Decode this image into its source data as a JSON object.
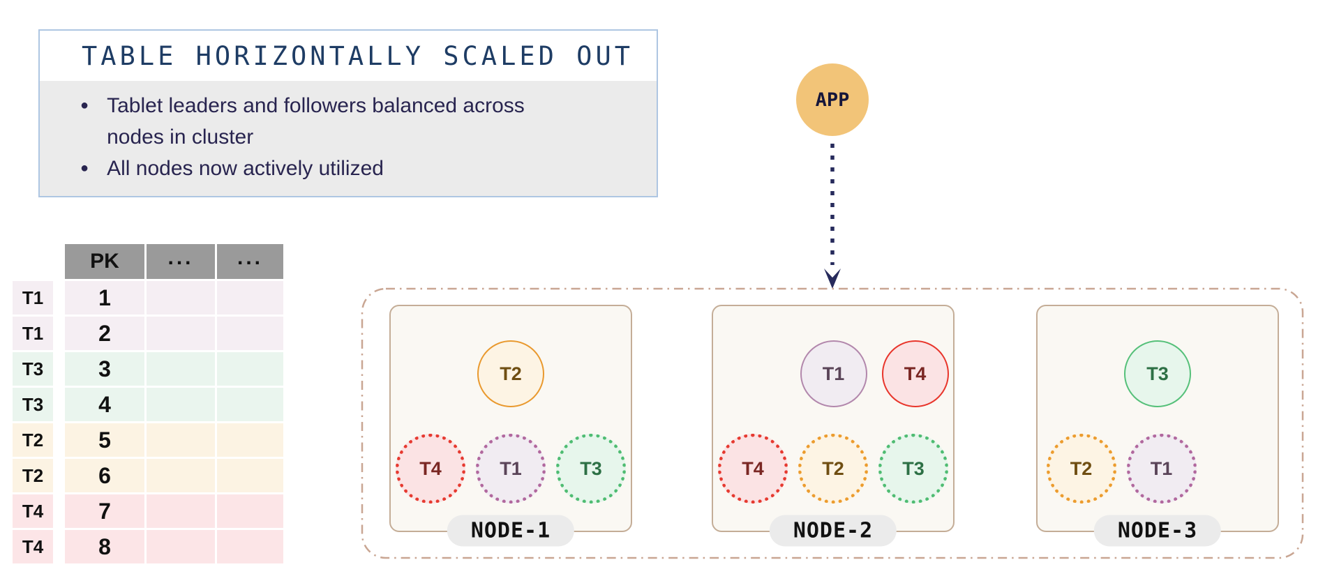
{
  "info_box": {
    "title": "TABLE HORIZONTALLY SCALED OUT",
    "bullets": [
      "Tablet leaders and followers balanced across nodes in cluster",
      "All nodes now actively utilized"
    ]
  },
  "table": {
    "headers": [
      "PK",
      "...",
      "..."
    ],
    "rows": [
      {
        "tablet": "T1",
        "pk": "1"
      },
      {
        "tablet": "T1",
        "pk": "2"
      },
      {
        "tablet": "T3",
        "pk": "3"
      },
      {
        "tablet": "T3",
        "pk": "4"
      },
      {
        "tablet": "T2",
        "pk": "5"
      },
      {
        "tablet": "T2",
        "pk": "6"
      },
      {
        "tablet": "T4",
        "pk": "7"
      },
      {
        "tablet": "T4",
        "pk": "8"
      }
    ]
  },
  "app": {
    "label": "APP"
  },
  "cluster": {
    "nodes": [
      {
        "label": "NODE-1",
        "leaders": [
          "T2"
        ],
        "followers": [
          "T4",
          "T1",
          "T3"
        ]
      },
      {
        "label": "NODE-2",
        "leaders": [
          "T1",
          "T4"
        ],
        "followers": [
          "T4",
          "T2",
          "T3"
        ]
      },
      {
        "label": "NODE-3",
        "leaders": [
          "T3"
        ],
        "followers": [
          "T2",
          "T1"
        ]
      }
    ]
  },
  "tablet_styles": {
    "T1": {
      "fill": "#f1ecf2",
      "stroke": "#b287ac",
      "dots": "#b1689e",
      "text": "#5a4458",
      "row": "#f5eef3"
    },
    "T2": {
      "fill": "#fdf4e4",
      "stroke": "#e9992e",
      "dots": "#ec9c2e",
      "text": "#6f4e12",
      "row": "#fcf3e3"
    },
    "T3": {
      "fill": "#e7f6ec",
      "stroke": "#55c079",
      "dots": "#4fbc72",
      "text": "#2d7045",
      "row": "#eaf5ee"
    },
    "T4": {
      "fill": "#fbe3e4",
      "stroke": "#e8352b",
      "dots": "#e63a30",
      "text": "#7a2723",
      "row": "#fce5e7"
    }
  },
  "colors": {
    "info_border": "#aec6e2",
    "info_title": "#1e3c64",
    "info_body_bg": "#ebebeb",
    "info_text": "#28244f",
    "table_header_bg": "#9a9a9a",
    "app_fill": "#f2c478",
    "arrow": "#272b5c",
    "cluster_border": "#c9a693",
    "node_border": "#c4ad97",
    "node_fill": "#faf8f3",
    "pill_bg": "#ebebeb"
  }
}
